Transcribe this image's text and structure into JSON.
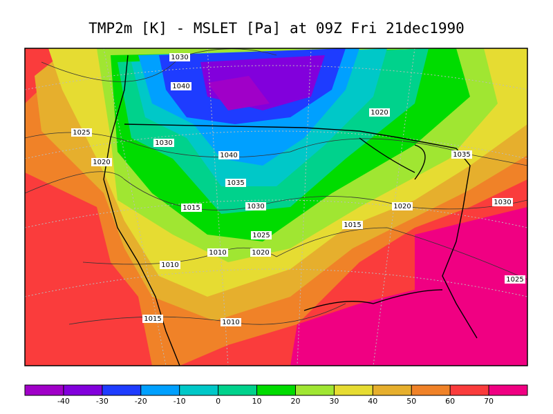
{
  "title": "TMP2m [K] - MSLET [Pa] at 09Z Fri 21dec1990",
  "contour_labels": [
    "1030",
    "1040",
    "1020",
    "1025",
    "1030",
    "1020",
    "1040",
    "1035",
    "1035",
    "1015",
    "1030",
    "1020",
    "1030",
    "1015",
    "1025",
    "1010",
    "1020",
    "1010",
    "1025",
    "1015",
    "1010"
  ],
  "colorbar": {
    "colors": [
      "#a000c8",
      "#8200dc",
      "#1e3cff",
      "#00a0ff",
      "#00c8c8",
      "#00d28c",
      "#00dc00",
      "#a0e632",
      "#e6dc32",
      "#e6af2d",
      "#f08228",
      "#fa3c3c",
      "#f00082"
    ],
    "ticks": [
      -40,
      -30,
      -20,
      -10,
      0,
      10,
      20,
      30,
      40,
      50,
      60,
      70
    ]
  }
}
